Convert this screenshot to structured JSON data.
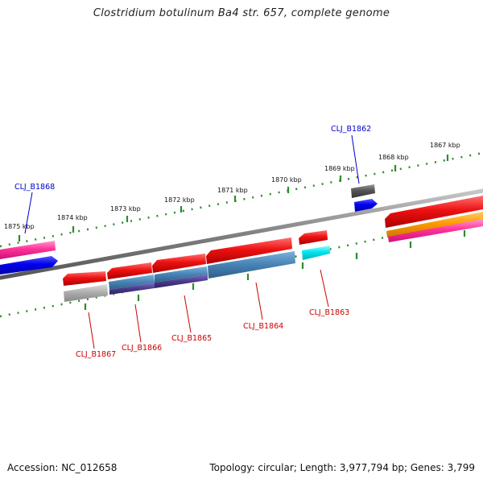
{
  "title": "Clostridium botulinum Ba4 str. 657, complete genome",
  "footer": {
    "accession": "Accession: NC_012658",
    "summary": "Topology: circular; Length: 3,977,794 bp; Genes: 3,799"
  },
  "scale_labels": [
    "1875 kbp",
    "1874 kbp",
    "1873 kbp",
    "1872 kbp",
    "1871 kbp",
    "1870 kbp",
    "1869 kbp",
    "1868 kbp",
    "1867 kbp"
  ],
  "gene_labels": {
    "b1868": "CLJ_B1868",
    "b1862": "CLJ_B1862",
    "b1867": "CLJ_B1867",
    "b1866": "CLJ_B1866",
    "b1865": "CLJ_B1865",
    "b1864": "CLJ_B1864",
    "b1863": "CLJ_B1863"
  },
  "colors": {
    "backbone": "#808080",
    "ticks": "#2e8b2e",
    "gene_red": "#ee1111",
    "gene_blue": "#0000ee",
    "gene_pink": "#ff3399",
    "gene_orange": "#ff9900",
    "gene_steel": "#4682b4",
    "gene_purple": "#4b3a8c",
    "gene_cyan": "#00e5ee",
    "gene_gray": "#aaaaaa",
    "gene_darkgray": "#555555",
    "label_blue": "#0000cc",
    "label_red": "#cc0000"
  }
}
